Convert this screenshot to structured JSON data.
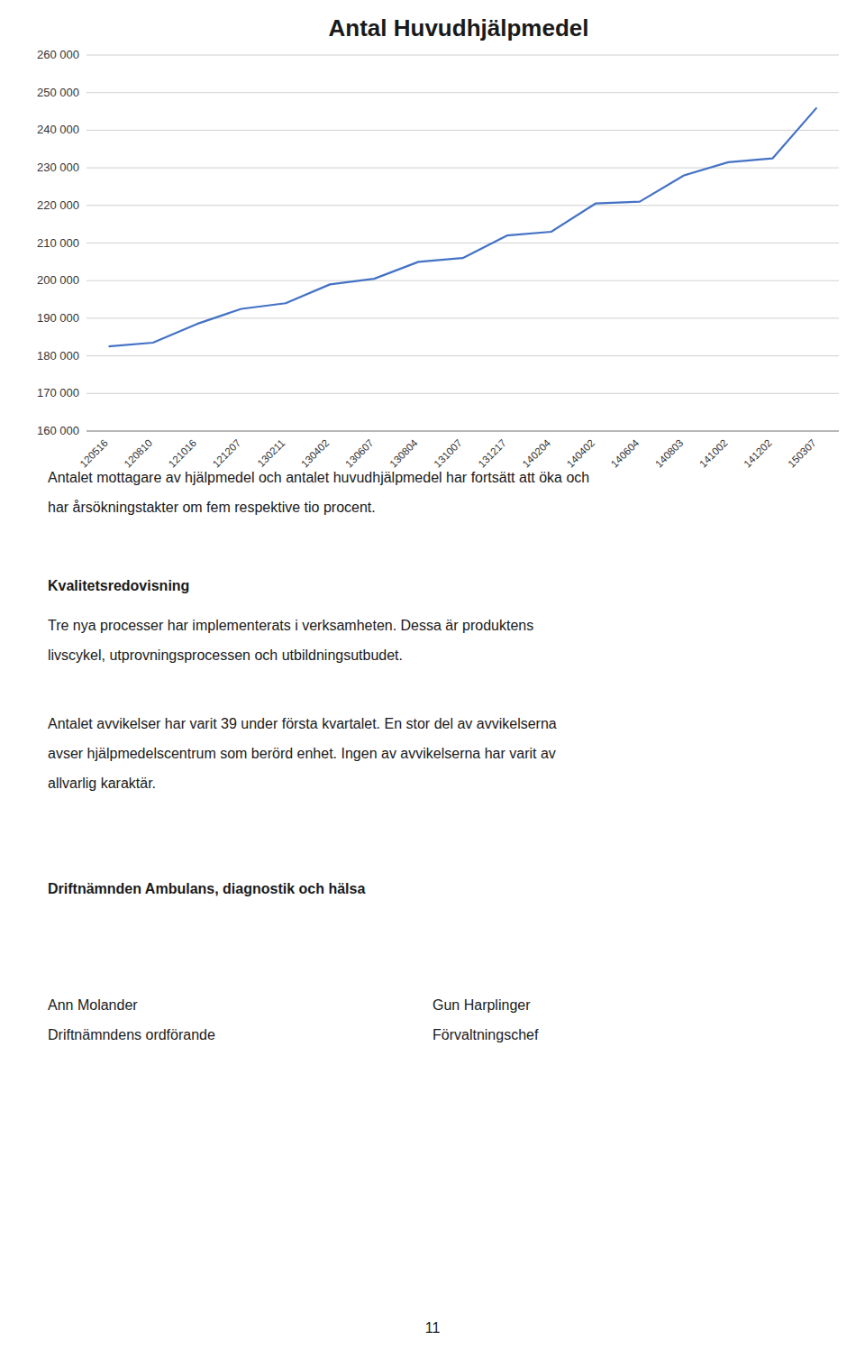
{
  "chart_data": {
    "type": "line",
    "title": "Antal Huvudhjälpmedel",
    "categories": [
      "120516",
      "120810",
      "121016",
      "121207",
      "130211",
      "130402",
      "130607",
      "130804",
      "131007",
      "131217",
      "140204",
      "140402",
      "140604",
      "140803",
      "141002",
      "141202",
      "150307"
    ],
    "values": [
      182500,
      183500,
      188500,
      192500,
      194000,
      199000,
      200500,
      205000,
      206000,
      212000,
      213000,
      220500,
      221000,
      228000,
      231500,
      232500,
      246000
    ],
    "color": "#4472C4",
    "ylim": [
      160000,
      260000
    ],
    "yticks": [
      {
        "value": 160000,
        "label": "160 000"
      },
      {
        "value": 170000,
        "label": "170 000"
      },
      {
        "value": 180000,
        "label": "180 000"
      },
      {
        "value": 190000,
        "label": "190 000"
      },
      {
        "value": 200000,
        "label": "200 000"
      },
      {
        "value": 210000,
        "label": "210 000"
      },
      {
        "value": 220000,
        "label": "220 000"
      },
      {
        "value": 230000,
        "label": "230 000"
      },
      {
        "value": 240000,
        "label": "240 000"
      },
      {
        "value": 250000,
        "label": "250 000"
      },
      {
        "value": 260000,
        "label": "260 000"
      }
    ],
    "grid": true
  },
  "para1": [
    "Antalet mottagare av hjälpmedel och antalet huvudhjälpmedel har fortsätt att öka och",
    "har årsökningstakter om fem respektive tio procent."
  ],
  "section_heading": "Kvalitetsredovisning",
  "para2": [
    "Tre nya processer har implementerats i verksamheten. Dessa är produktens",
    "livscykel, utprovningsprocessen och utbildningsutbudet."
  ],
  "para3": [
    "Antalet avvikelser har varit 39 under första kvartalet. En stor del av avvikelserna",
    "avser hjälpmedelscentrum som berörd enhet. Ingen av avvikelserna har varit av",
    "allvarlig karaktär."
  ],
  "section2_heading": "Driftnämnden Ambulans, diagnostik och hälsa",
  "signatures": [
    {
      "name": "Ann Molander",
      "title": "Driftnämndens ordförande"
    },
    {
      "name": "Gun Harplinger",
      "title": "Förvaltningschef"
    }
  ],
  "page_number": "11"
}
